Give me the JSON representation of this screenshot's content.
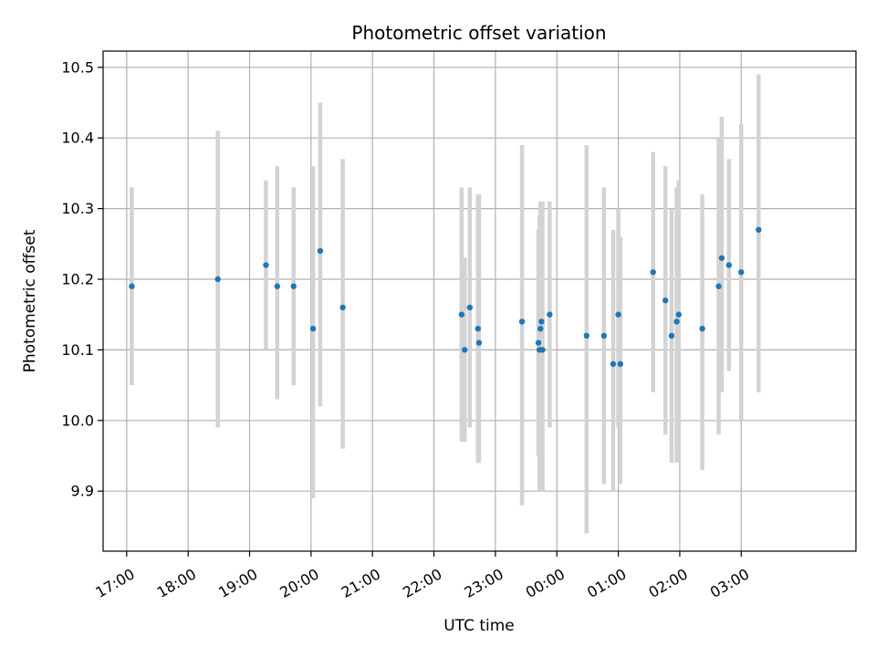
{
  "chart_data": {
    "type": "scatter",
    "title": "Photometric offset variation",
    "xlabel": "UTC time",
    "ylabel": "Photometric offset",
    "x_axis": "time",
    "x_range": [
      "16:37",
      "04:52"
    ],
    "x_ticks": [
      "17:00",
      "18:00",
      "19:00",
      "20:00",
      "21:00",
      "22:00",
      "23:00",
      "00:00",
      "01:00",
      "02:00",
      "03:00"
    ],
    "ylim": [
      9.815,
      10.523
    ],
    "y_ticks": [
      "9.9",
      "10.0",
      "10.1",
      "10.2",
      "10.3",
      "10.4",
      "10.5"
    ],
    "grid": true,
    "legend": "none",
    "colors": {
      "point": "#1f77b4",
      "errorbar": "#d3d3d3",
      "grid": "#b0b0b0"
    },
    "series": [
      {
        "points": [
          {
            "x": "17:05",
            "y": 10.19,
            "lo": 10.05,
            "hi": 10.33
          },
          {
            "x": "18:29",
            "y": 10.2,
            "lo": 9.99,
            "hi": 10.41
          },
          {
            "x": "19:16",
            "y": 10.22,
            "lo": 10.1,
            "hi": 10.34
          },
          {
            "x": "19:27",
            "y": 10.19,
            "lo": 10.03,
            "hi": 10.36
          },
          {
            "x": "19:43",
            "y": 10.19,
            "lo": 10.05,
            "hi": 10.33
          },
          {
            "x": "20:02",
            "y": 10.13,
            "lo": 9.89,
            "hi": 10.36
          },
          {
            "x": "20:09",
            "y": 10.24,
            "lo": 10.02,
            "hi": 10.45
          },
          {
            "x": "20:31",
            "y": 10.16,
            "lo": 9.96,
            "hi": 10.37
          },
          {
            "x": "22:27",
            "y": 10.15,
            "lo": 9.97,
            "hi": 10.33
          },
          {
            "x": "22:30",
            "y": 10.1,
            "lo": 9.97,
            "hi": 10.23
          },
          {
            "x": "22:35",
            "y": 10.16,
            "lo": 9.99,
            "hi": 10.33
          },
          {
            "x": "22:43",
            "y": 10.13,
            "lo": 9.94,
            "hi": 10.32
          },
          {
            "x": "22:44",
            "y": 10.11,
            "lo": 9.94,
            "hi": 10.32
          },
          {
            "x": "23:26",
            "y": 10.14,
            "lo": 9.88,
            "hi": 10.39
          },
          {
            "x": "23:42",
            "y": 10.11,
            "lo": 9.95,
            "hi": 10.27
          },
          {
            "x": "23:43",
            "y": 10.1,
            "lo": 9.9,
            "hi": 10.29
          },
          {
            "x": "23:44",
            "y": 10.13,
            "lo": 9.95,
            "hi": 10.31
          },
          {
            "x": "23:45",
            "y": 10.14,
            "lo": 9.9,
            "hi": 10.31
          },
          {
            "x": "23:46",
            "y": 10.1,
            "lo": 9.9,
            "hi": 10.31
          },
          {
            "x": "23:53",
            "y": 10.15,
            "lo": 9.99,
            "hi": 10.31
          },
          {
            "x": "00:29",
            "y": 10.12,
            "lo": 9.84,
            "hi": 10.39
          },
          {
            "x": "00:46",
            "y": 10.12,
            "lo": 9.91,
            "hi": 10.33
          },
          {
            "x": "00:55",
            "y": 10.08,
            "lo": 9.9,
            "hi": 10.27
          },
          {
            "x": "01:00",
            "y": 10.15,
            "lo": 9.99,
            "hi": 10.3
          },
          {
            "x": "01:02",
            "y": 10.08,
            "lo": 9.91,
            "hi": 10.26
          },
          {
            "x": "01:34",
            "y": 10.21,
            "lo": 10.04,
            "hi": 10.38
          },
          {
            "x": "01:46",
            "y": 10.17,
            "lo": 9.98,
            "hi": 10.36
          },
          {
            "x": "01:52",
            "y": 10.12,
            "lo": 9.94,
            "hi": 10.3
          },
          {
            "x": "01:57",
            "y": 10.14,
            "lo": 9.94,
            "hi": 10.33
          },
          {
            "x": "01:59",
            "y": 10.15,
            "lo": 9.96,
            "hi": 10.34
          },
          {
            "x": "02:22",
            "y": 10.13,
            "lo": 9.93,
            "hi": 10.32
          },
          {
            "x": "02:38",
            "y": 10.19,
            "lo": 9.98,
            "hi": 10.4
          },
          {
            "x": "02:41",
            "y": 10.23,
            "lo": 10.04,
            "hi": 10.43
          },
          {
            "x": "02:48",
            "y": 10.22,
            "lo": 10.07,
            "hi": 10.37
          },
          {
            "x": "03:00",
            "y": 10.21,
            "lo": 10.0,
            "hi": 10.42
          },
          {
            "x": "03:17",
            "y": 10.27,
            "lo": 10.04,
            "hi": 10.49
          }
        ]
      }
    ]
  }
}
